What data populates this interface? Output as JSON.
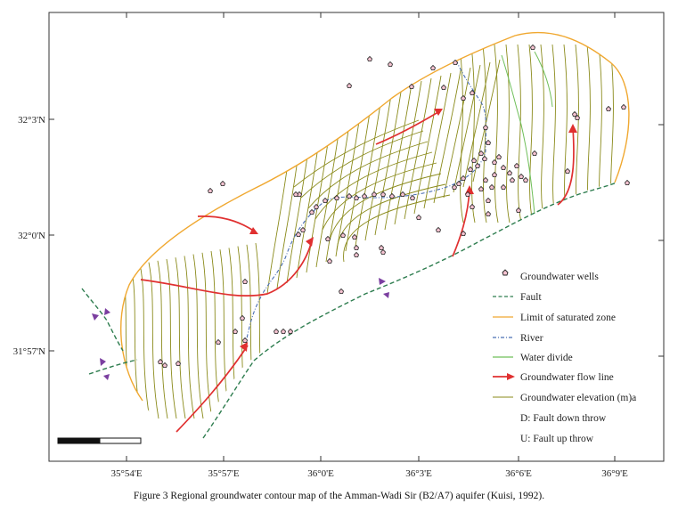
{
  "figure": {
    "caption": "Figure 3 Regional groundwater contour map of the Amman-Wadi Sir (B2/A7) aquifer (Kuisi, 1992)."
  },
  "axes": {
    "x_ticks": [
      "35°54'E",
      "35°57'E",
      "36°0'E",
      "36°3'E",
      "36°6'E",
      "36°9'E"
    ],
    "y_ticks": [
      "32°3'N",
      "32°0'N",
      "31°57'N"
    ]
  },
  "legend": {
    "items": [
      {
        "key": "wells",
        "label": "Groundwater wells"
      },
      {
        "key": "fault",
        "label": "Fault"
      },
      {
        "key": "limit",
        "label": "Limit of saturated zone"
      },
      {
        "key": "river",
        "label": "River"
      },
      {
        "key": "divide",
        "label": "Water divide"
      },
      {
        "key": "flow",
        "label": "Groundwater flow line"
      },
      {
        "key": "contour",
        "label": "Groundwater elevation (m)a"
      },
      {
        "key": "fault_down",
        "label": "D: Fault down throw"
      },
      {
        "key": "fault_up",
        "label": "U: Fault up throw"
      }
    ]
  },
  "colors": {
    "limit": "#f0a830",
    "fault": "#2e7d4f",
    "river": "#4a6fb5",
    "divide": "#6fbf5a",
    "flow": "#e03030",
    "contour": "#8a8a1a",
    "well_fill": "#f4c2d0",
    "throw_marker": "#7b3fa0"
  }
}
